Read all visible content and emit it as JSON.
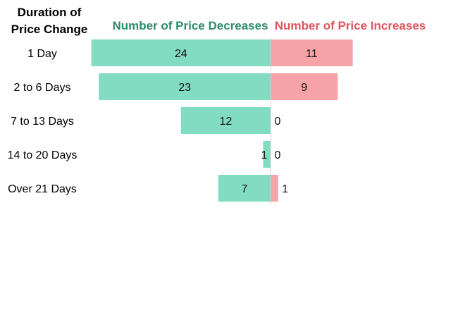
{
  "chart_data": {
    "type": "bar",
    "categories": [
      "1 Day",
      "2 to 6 Days",
      "7 to 13 Days",
      "14 to 20 Days",
      "Over 21 Days"
    ],
    "category_header": [
      "Duration of",
      "Price Change"
    ],
    "series": [
      {
        "name": "Number of Price Decreases",
        "values": [
          24,
          23,
          12,
          1,
          7
        ],
        "color": "#82dcc2",
        "label_color": "#2e8b6e"
      },
      {
        "name": "Number of Price Increases",
        "values": [
          11,
          9,
          0,
          0,
          1
        ],
        "color": "#f5a3a6",
        "label_color": "#e0555d"
      }
    ],
    "divider_color": "#cfcfcf"
  }
}
